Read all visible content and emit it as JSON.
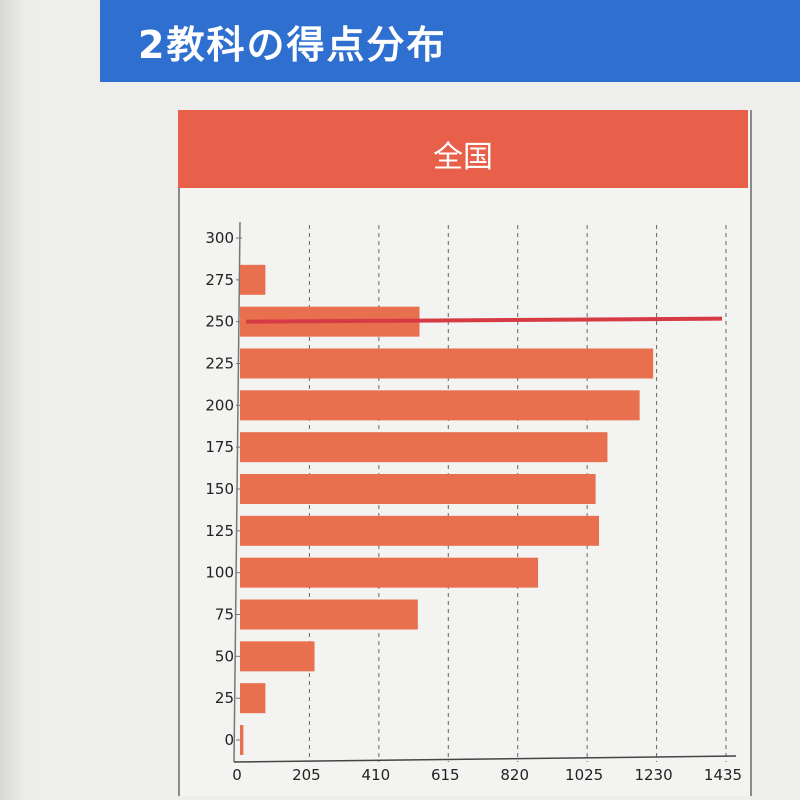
{
  "section": {
    "title": "2教科の得点分布"
  },
  "chart_panel": {
    "title": "全国"
  },
  "colors": {
    "header_blue": "#2f6fcf",
    "panel_red": "#e85f4a",
    "bar": "#e8704f",
    "marker_line": "#d63a45"
  },
  "chart_data": {
    "type": "bar",
    "orientation": "horizontal",
    "title": "全国",
    "xlabel": "",
    "ylabel": "",
    "categories": [
      "0",
      "25",
      "50",
      "75",
      "100",
      "125",
      "150",
      "175",
      "200",
      "225",
      "250",
      "275"
    ],
    "values": [
      10,
      75,
      220,
      525,
      880,
      1060,
      1050,
      1085,
      1180,
      1220,
      530,
      75
    ],
    "xlim": [
      0,
      1435
    ],
    "x_ticks": [
      "0",
      "205",
      "410",
      "615",
      "820",
      "1025",
      "1230",
      "1435"
    ],
    "y_ticks": [
      "0",
      "25",
      "50",
      "75",
      "100",
      "125",
      "150",
      "175",
      "200",
      "225",
      "250",
      "275",
      "300"
    ],
    "grid": "vertical-dashed",
    "reference_line": {
      "score": 250,
      "color": "#d63a45"
    }
  }
}
